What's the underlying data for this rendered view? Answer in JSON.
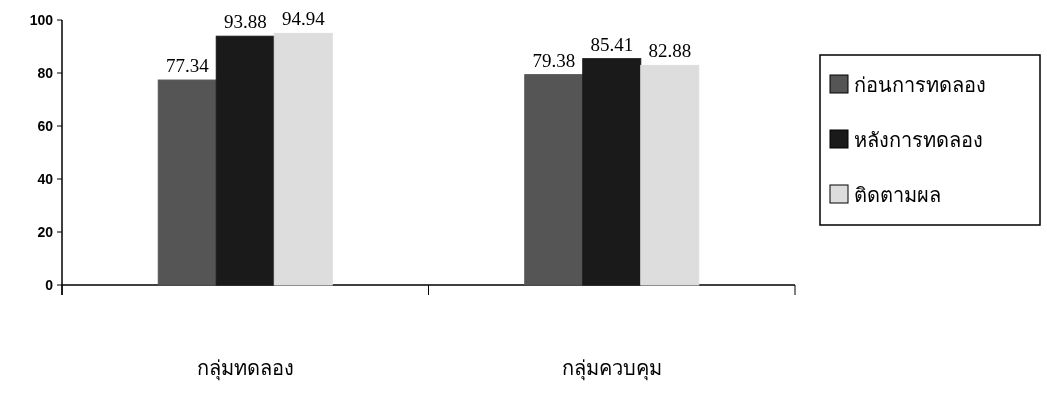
{
  "chart_data": {
    "type": "bar",
    "categories": [
      "กลุ่มทดลอง",
      "กลุ่มควบคุม"
    ],
    "series": [
      {
        "name": "ก่อนการทดลอง",
        "color": "#555555",
        "values": [
          77.34,
          79.38
        ]
      },
      {
        "name": "หลังการทดลอง",
        "color": "#1a1a1a",
        "values": [
          93.88,
          85.41
        ]
      },
      {
        "name": "ติดตามผล",
        "color": "#dddddd",
        "values": [
          94.94,
          82.88
        ]
      }
    ],
    "ylim": [
      0,
      100
    ],
    "yticks": [
      0,
      20,
      40,
      60,
      80,
      100
    ],
    "data_labels": true,
    "legend": "right",
    "grid": false
  }
}
